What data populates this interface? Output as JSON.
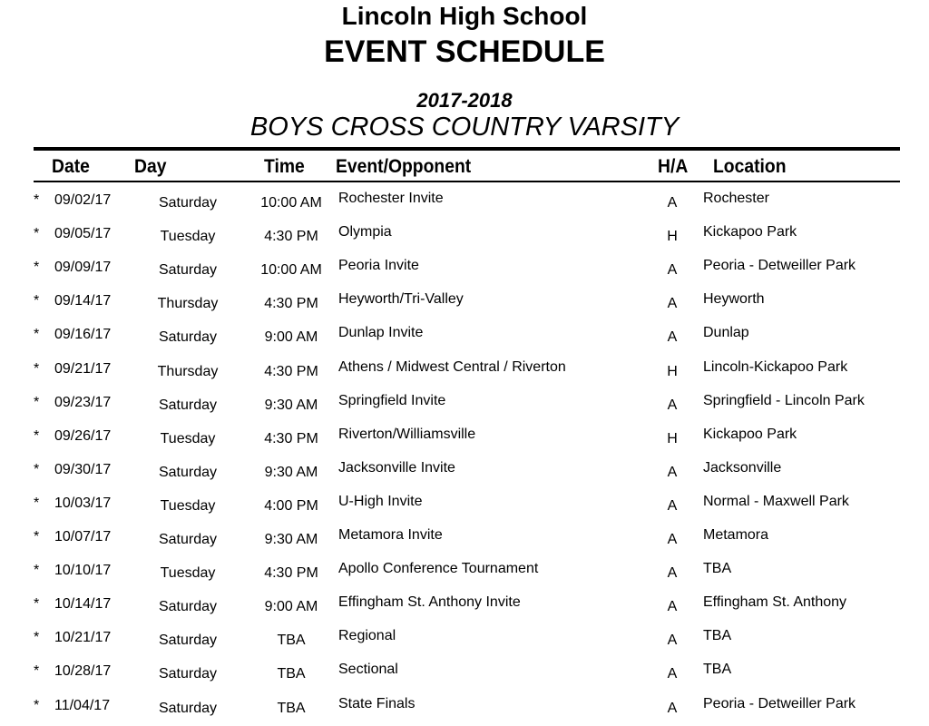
{
  "header": {
    "school": "Lincoln High School",
    "title": "EVENT SCHEDULE",
    "season": "2017-2018",
    "team": "BOYS CROSS COUNTRY VARSITY"
  },
  "columns": {
    "date": "Date",
    "day": "Day",
    "time": "Time",
    "event": "Event/Opponent",
    "ha": "H/A",
    "location": "Location"
  },
  "rows": [
    {
      "mark": "*",
      "date": "09/02/17",
      "day": "Saturday",
      "time": "10:00 AM",
      "event": "Rochester Invite",
      "ha": "A",
      "location": "Rochester"
    },
    {
      "mark": "*",
      "date": "09/05/17",
      "day": "Tuesday",
      "time": "4:30 PM",
      "event": "Olympia",
      "ha": "H",
      "location": "Kickapoo Park"
    },
    {
      "mark": "*",
      "date": "09/09/17",
      "day": "Saturday",
      "time": "10:00 AM",
      "event": "Peoria Invite",
      "ha": "A",
      "location": "Peoria - Detweiller Park"
    },
    {
      "mark": "*",
      "date": "09/14/17",
      "day": "Thursday",
      "time": "4:30 PM",
      "event": "Heyworth/Tri-Valley",
      "ha": "A",
      "location": "Heyworth"
    },
    {
      "mark": "*",
      "date": "09/16/17",
      "day": "Saturday",
      "time": "9:00 AM",
      "event": "Dunlap Invite",
      "ha": "A",
      "location": "Dunlap"
    },
    {
      "mark": "*",
      "date": "09/21/17",
      "day": "Thursday",
      "time": "4:30 PM",
      "event": "Athens / Midwest Central / Riverton",
      "ha": "H",
      "location": "Lincoln-Kickapoo Park"
    },
    {
      "mark": "*",
      "date": "09/23/17",
      "day": "Saturday",
      "time": "9:30 AM",
      "event": "Springfield Invite",
      "ha": "A",
      "location": "Springfield - Lincoln Park"
    },
    {
      "mark": "*",
      "date": "09/26/17",
      "day": "Tuesday",
      "time": "4:30 PM",
      "event": "Riverton/Williamsville",
      "ha": "H",
      "location": "Kickapoo Park"
    },
    {
      "mark": "*",
      "date": "09/30/17",
      "day": "Saturday",
      "time": "9:30 AM",
      "event": "Jacksonville Invite",
      "ha": "A",
      "location": "Jacksonville"
    },
    {
      "mark": "*",
      "date": "10/03/17",
      "day": "Tuesday",
      "time": "4:00 PM",
      "event": "U-High Invite",
      "ha": "A",
      "location": "Normal - Maxwell Park"
    },
    {
      "mark": "*",
      "date": "10/07/17",
      "day": "Saturday",
      "time": "9:30 AM",
      "event": "Metamora Invite",
      "ha": "A",
      "location": "Metamora"
    },
    {
      "mark": "*",
      "date": "10/10/17",
      "day": "Tuesday",
      "time": "4:30 PM",
      "event": "Apollo Conference Tournament",
      "ha": "A",
      "location": "TBA"
    },
    {
      "mark": "*",
      "date": "10/14/17",
      "day": "Saturday",
      "time": "9:00 AM",
      "event": "Effingham St. Anthony Invite",
      "ha": "A",
      "location": "Effingham St. Anthony"
    },
    {
      "mark": "*",
      "date": "10/21/17",
      "day": "Saturday",
      "time": "TBA",
      "event": "Regional",
      "ha": "A",
      "location": "TBA"
    },
    {
      "mark": "*",
      "date": "10/28/17",
      "day": "Saturday",
      "time": "TBA",
      "event": "Sectional",
      "ha": "A",
      "location": "TBA"
    },
    {
      "mark": "*",
      "date": "11/04/17",
      "day": "Saturday",
      "time": "TBA",
      "event": "State Finals",
      "ha": "A",
      "location": "Peoria - Detweiller Park"
    }
  ]
}
